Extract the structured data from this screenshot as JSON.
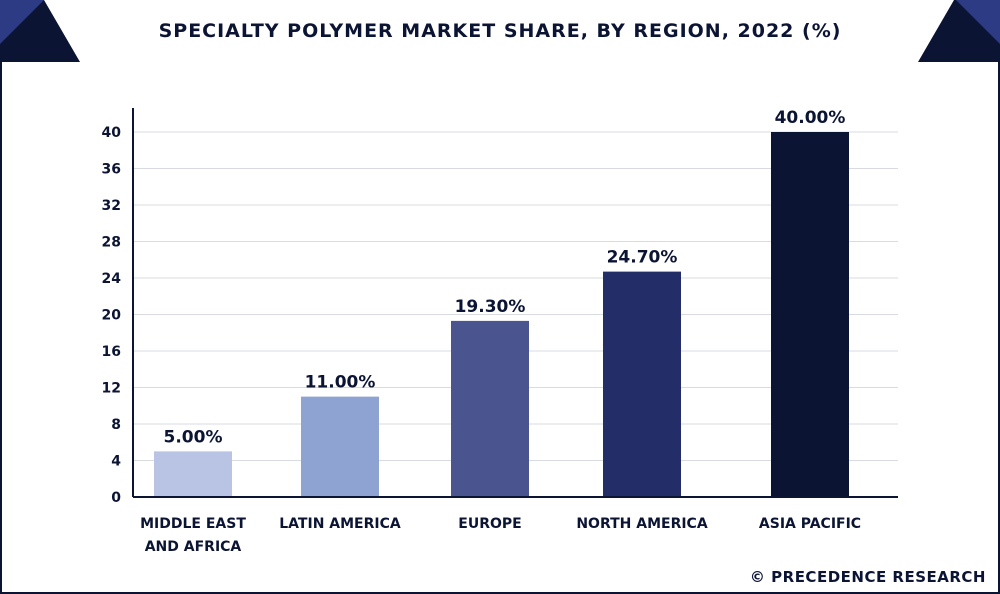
{
  "header": {
    "title": "SPECIALTY POLYMER MARKET SHARE, BY REGION, 2022 (%)"
  },
  "watermark": "© PRECEDENCE RESEARCH",
  "colors": {
    "navy": "#0b1433",
    "accent": "#2d3b85"
  },
  "chart_data": {
    "type": "bar",
    "title": "SPECIALTY POLYMER MARKET SHARE, BY REGION, 2022 (%)",
    "xlabel": "",
    "ylabel": "",
    "ylim": [
      0,
      40
    ],
    "yticks": [
      0,
      4,
      8,
      12,
      16,
      20,
      24,
      28,
      32,
      36,
      40
    ],
    "grid": true,
    "categories": [
      "MIDDLE EAST AND AFRICA",
      "LATIN AMERICA",
      "EUROPE",
      "NORTH AMERICA",
      "ASIA PACIFIC"
    ],
    "category_lines": [
      [
        "MIDDLE EAST",
        "AND AFRICA"
      ],
      [
        "LATIN AMERICA"
      ],
      [
        "EUROPE"
      ],
      [
        "NORTH AMERICA"
      ],
      [
        "ASIA PACIFIC"
      ]
    ],
    "values": [
      5.0,
      11.0,
      19.3,
      24.7,
      40.0
    ],
    "data_labels": [
      "5.00%",
      "11.00%",
      "19.30%",
      "24.70%",
      "40.00%"
    ],
    "bar_colors": [
      "#b9c3e4",
      "#8fa3d3",
      "#4a5590",
      "#232d68",
      "#0b1433"
    ]
  }
}
